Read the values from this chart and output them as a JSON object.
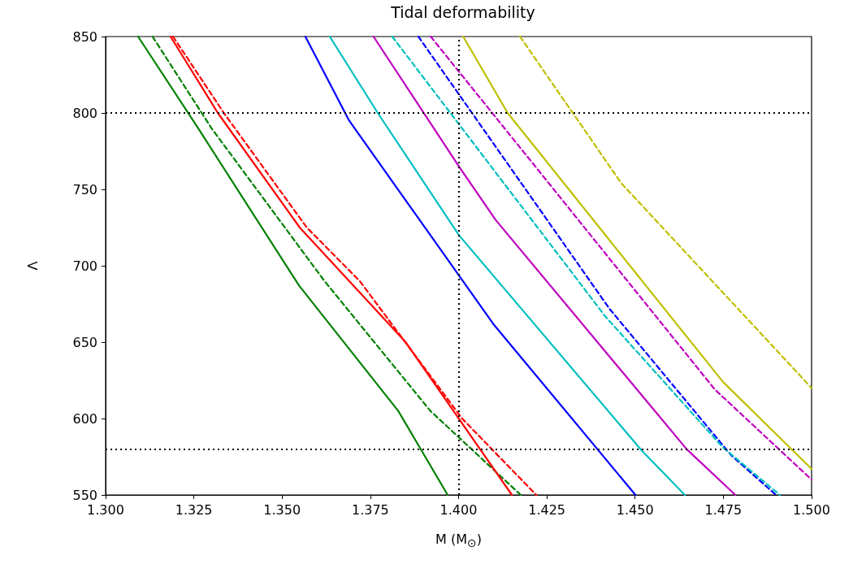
{
  "chart_data": {
    "type": "line",
    "title": "Tidal deformability",
    "xlabel": "M (M$_{⊙}$)",
    "ylabel": "Λ",
    "xlim": [
      1.3,
      1.5
    ],
    "xticks": [
      {
        "value": 1.3,
        "label": "1.300"
      },
      {
        "value": 1.325,
        "label": "1.325"
      },
      {
        "value": 1.35,
        "label": "1.350"
      },
      {
        "value": 1.375,
        "label": "1.375"
      },
      {
        "value": 1.4,
        "label": "1.400"
      },
      {
        "value": 1.425,
        "label": "1.425"
      },
      {
        "value": 1.45,
        "label": "1.450"
      },
      {
        "value": 1.475,
        "label": "1.475"
      },
      {
        "value": 1.5,
        "label": "1.500"
      }
    ],
    "ylim": [
      550,
      850
    ],
    "yticks": [
      550,
      600,
      650,
      700,
      750,
      800,
      850
    ],
    "grid": false,
    "legend": false,
    "marker": "none",
    "ref_lines": [
      {
        "axis": "y",
        "value": 800,
        "color": "#000000",
        "line_style": "dotted"
      },
      {
        "axis": "y",
        "value": 580,
        "color": "#000000",
        "line_style": "dotted"
      },
      {
        "axis": "x",
        "value": 1.4,
        "color": "#000000",
        "line_style": "dotted"
      }
    ],
    "series": [
      {
        "color": "#008000",
        "line_style": "solid",
        "x": [
          1.3092,
          1.3265,
          1.3548,
          1.3829,
          1.3969
        ],
        "values": [
          850,
          789,
          687,
          605,
          550
        ]
      },
      {
        "color": "#008000",
        "line_style": "dashed",
        "x": [
          1.3133,
          1.33,
          1.362,
          1.392,
          1.4176
        ],
        "values": [
          850,
          790,
          690,
          605,
          550
        ]
      },
      {
        "color": "#ff0000",
        "line_style": "solid",
        "x": [
          1.3184,
          1.3318,
          1.355,
          1.385,
          1.4151
        ],
        "values": [
          850,
          800,
          725,
          650,
          550
        ]
      },
      {
        "color": "#ff0000",
        "line_style": "dashed",
        "x": [
          1.3191,
          1.3335,
          1.357,
          1.372,
          1.401,
          1.422
        ],
        "values": [
          850,
          800,
          725,
          690,
          600,
          550
        ]
      },
      {
        "color": "#0000ff",
        "line_style": "solid",
        "x": [
          1.3566,
          1.369,
          1.4098,
          1.4501
        ],
        "values": [
          850,
          795,
          662,
          550
        ]
      },
      {
        "color": "#00bfbf",
        "line_style": "solid",
        "x": [
          1.3635,
          1.3771,
          1.4001,
          1.4519,
          1.4641
        ],
        "values": [
          850,
          800,
          720,
          579,
          550
        ]
      },
      {
        "color": "#bf00bf",
        "line_style": "solid",
        "x": [
          1.3759,
          1.4001,
          1.4105,
          1.4646,
          1.4784
        ],
        "values": [
          850,
          765,
          730,
          580,
          550
        ]
      },
      {
        "color": "#0000ff",
        "line_style": "dashed",
        "x": [
          1.3886,
          1.4427,
          1.4772,
          1.4899
        ],
        "values": [
          850,
          672,
          576,
          550
        ]
      },
      {
        "color": "#00bfbf",
        "line_style": "dashed",
        "x": [
          1.3812,
          1.4415,
          1.4749,
          1.491
        ],
        "values": [
          850,
          667,
          581,
          550
        ]
      },
      {
        "color": "#bf00bf",
        "line_style": "dashed",
        "x": [
          1.3921,
          1.4726,
          1.5
        ],
        "values": [
          850,
          619,
          560
        ]
      },
      {
        "color": "#bfbf00",
        "line_style": "solid",
        "x": [
          1.4013,
          1.4139,
          1.4749,
          1.5
        ],
        "values": [
          850,
          800,
          624,
          567
        ]
      },
      {
        "color": "#bfbf00",
        "line_style": "dashed",
        "x": [
          1.4174,
          1.4461,
          1.5
        ],
        "values": [
          850,
          754,
          620
        ]
      }
    ]
  }
}
